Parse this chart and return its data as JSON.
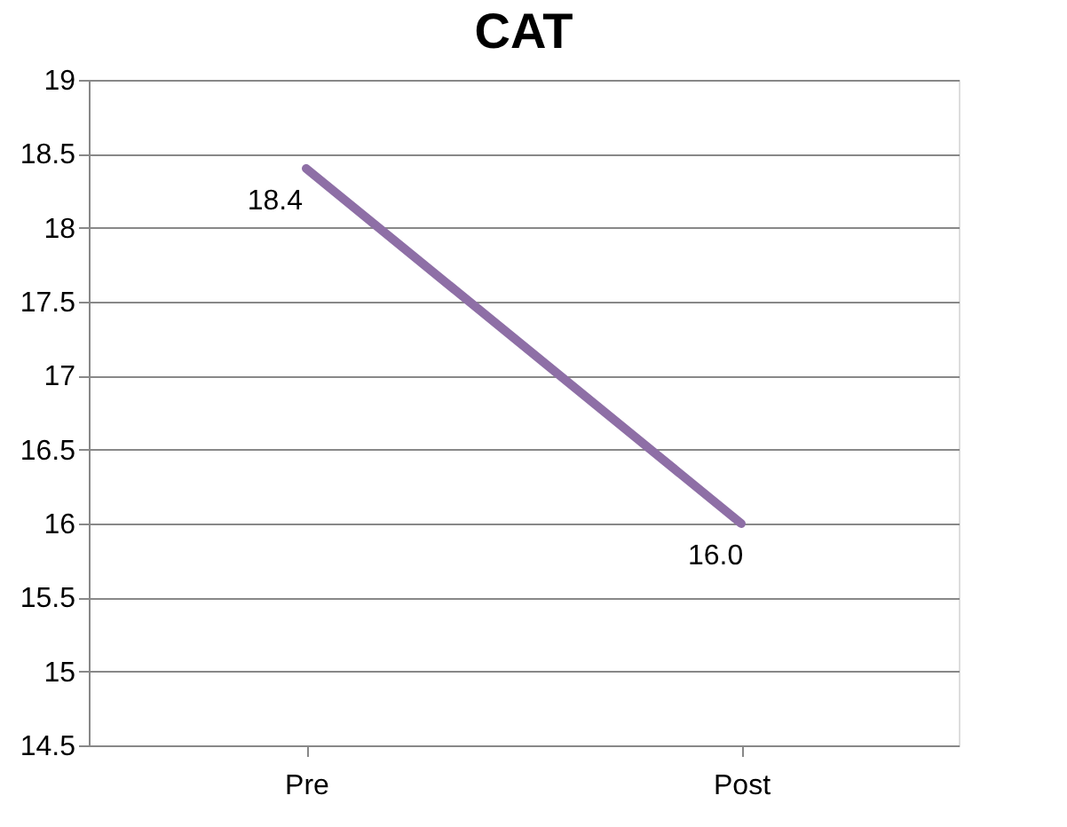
{
  "chart_data": {
    "type": "line",
    "title": "CAT",
    "categories": [
      "Pre",
      "Post"
    ],
    "series": [
      {
        "color": "#8e6fa6",
        "values": [
          18.4,
          16.0
        ],
        "value_labels": [
          "18.4",
          "16.0"
        ]
      }
    ],
    "ylim": [
      14.5,
      19
    ],
    "yticks": [
      14.5,
      15,
      15.5,
      16,
      16.5,
      17,
      17.5,
      18,
      18.5,
      19
    ],
    "grid": "y"
  }
}
